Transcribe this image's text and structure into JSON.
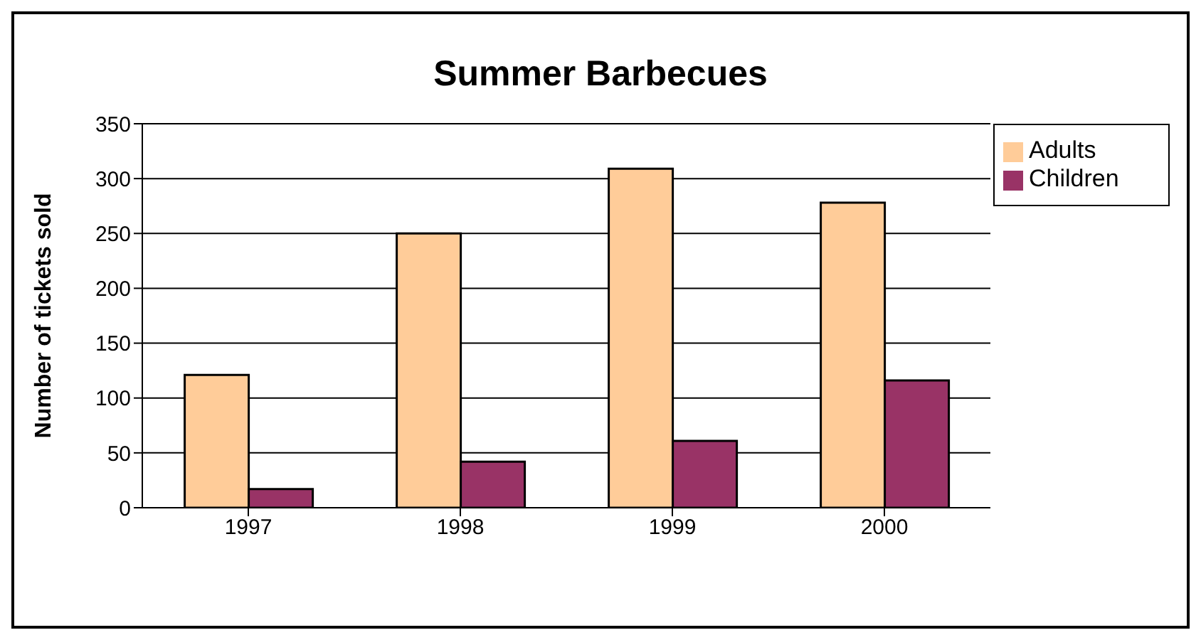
{
  "chart_data": {
    "type": "bar",
    "title": "Summer Barbecues",
    "ylabel": "Number of tickets sold",
    "categories": [
      "1997",
      "1998",
      "1999",
      "2000"
    ],
    "series": [
      {
        "name": "Adults",
        "color": "#ffcc99",
        "values": [
          121,
          250,
          309,
          278
        ]
      },
      {
        "name": "Children",
        "color": "#993366",
        "values": [
          17,
          42,
          61,
          116
        ]
      }
    ],
    "ylim": [
      0,
      350
    ],
    "yticks": [
      0,
      50,
      100,
      150,
      200,
      250,
      300,
      350
    ],
    "grid": "y",
    "legend": "top right"
  }
}
